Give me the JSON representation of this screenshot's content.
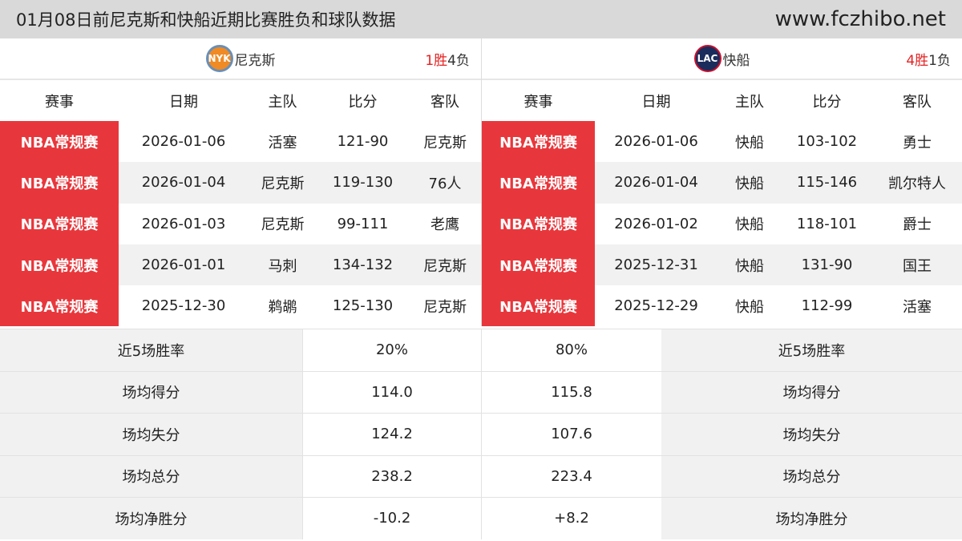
{
  "title": "01月08日前尼克斯和快船近期比赛胜负和球队数据",
  "site": "www.fczhibo.net",
  "headers": [
    "赛事",
    "日期",
    "主队",
    "比分",
    "客队"
  ],
  "left": {
    "logo": "NYK",
    "team": "尼克斯",
    "wins": "1胜",
    "losses": "4负",
    "rows": [
      [
        "NBA常规赛",
        "2026-01-06",
        "活塞",
        "121-90",
        "尼克斯"
      ],
      [
        "NBA常规赛",
        "2026-01-04",
        "尼克斯",
        "119-130",
        "76人"
      ],
      [
        "NBA常规赛",
        "2026-01-03",
        "尼克斯",
        "99-111",
        "老鹰"
      ],
      [
        "NBA常规赛",
        "2026-01-01",
        "马刺",
        "134-132",
        "尼克斯"
      ],
      [
        "NBA常规赛",
        "2025-12-30",
        "鹈鹕",
        "125-130",
        "尼克斯"
      ]
    ]
  },
  "right": {
    "logo": "LAC",
    "team": "快船",
    "wins": "4胜",
    "losses": "1负",
    "rows": [
      [
        "NBA常规赛",
        "2026-01-06",
        "快船",
        "103-102",
        "勇士"
      ],
      [
        "NBA常规赛",
        "2026-01-04",
        "快船",
        "115-146",
        "凯尔特人"
      ],
      [
        "NBA常规赛",
        "2026-01-02",
        "快船",
        "118-101",
        "爵士"
      ],
      [
        "NBA常规赛",
        "2025-12-31",
        "快船",
        "131-90",
        "国王"
      ],
      [
        "NBA常规赛",
        "2025-12-29",
        "快船",
        "112-99",
        "活塞"
      ]
    ]
  },
  "stats": [
    {
      "label": "近5场胜率",
      "left": "20%",
      "right": "80%"
    },
    {
      "label": "场均得分",
      "left": "114.0",
      "right": "115.8"
    },
    {
      "label": "场均失分",
      "left": "124.2",
      "right": "107.6"
    },
    {
      "label": "场均总分",
      "left": "238.2",
      "right": "223.4"
    },
    {
      "label": "场均净胜分",
      "left": "-10.2",
      "right": "+8.2"
    }
  ],
  "colors": {
    "competition_bg": "#e8373c",
    "win": "#e52222"
  }
}
